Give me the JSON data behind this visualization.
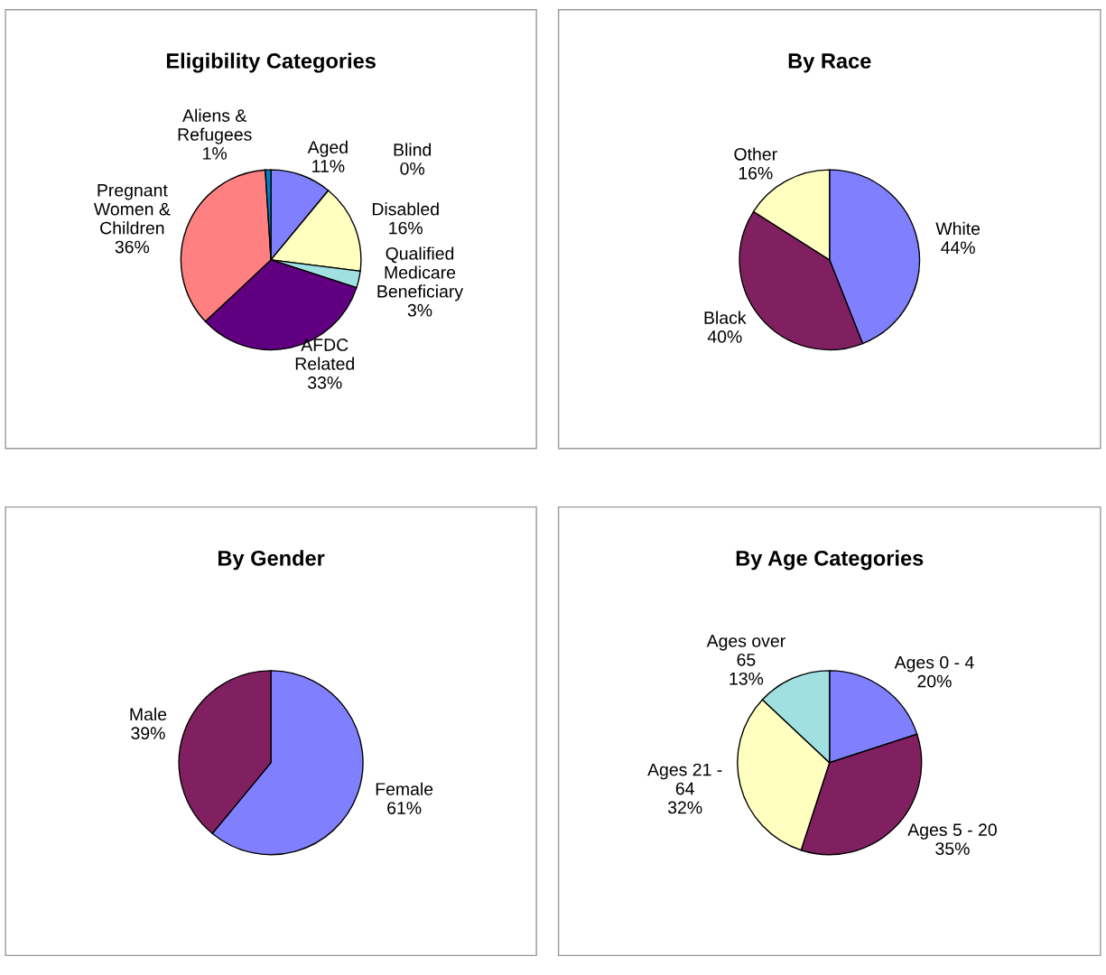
{
  "chart_data": [
    {
      "type": "pie",
      "title": "Eligibility Categories",
      "categories": [
        "Aged",
        "Blind",
        "Disabled",
        "Qualified\nMedicare\nBeneficiary",
        "AFDC\nRelated",
        "Pregnant\nWomen &\nChildren",
        "Aliens &\nRefugees"
      ],
      "values": [
        11,
        0,
        16,
        3,
        33,
        36,
        1
      ],
      "value_labels": [
        "11%",
        "0%",
        "16%",
        "3%",
        "33%",
        "36%",
        "1%"
      ],
      "colors": [
        "#8080ff",
        "#802060",
        "#ffffc0",
        "#a0e0e0",
        "#600080",
        "#ff8080",
        "#0080c0"
      ],
      "legend": false
    },
    {
      "type": "pie",
      "title": "By Race",
      "categories": [
        "White",
        "Black",
        "Other"
      ],
      "values": [
        44,
        40,
        16
      ],
      "value_labels": [
        "44%",
        "40%",
        "16%"
      ],
      "colors": [
        "#8080ff",
        "#802060",
        "#ffffc0"
      ],
      "legend": false
    },
    {
      "type": "pie",
      "title": "By Gender",
      "categories": [
        "Female",
        "Male"
      ],
      "values": [
        61,
        39
      ],
      "value_labels": [
        "61%",
        "39%"
      ],
      "colors": [
        "#8080ff",
        "#802060"
      ],
      "legend": false
    },
    {
      "type": "pie",
      "title": "By Age Categories",
      "categories": [
        "Ages 0 - 4",
        "Ages 5 - 20",
        "Ages 21 -\n64",
        "Ages over\n65"
      ],
      "values": [
        20,
        35,
        32,
        13
      ],
      "value_labels": [
        "20%",
        "35%",
        "32%",
        "13%"
      ],
      "colors": [
        "#8080ff",
        "#802060",
        "#ffffc0",
        "#a0e0e0"
      ],
      "legend": false
    }
  ]
}
